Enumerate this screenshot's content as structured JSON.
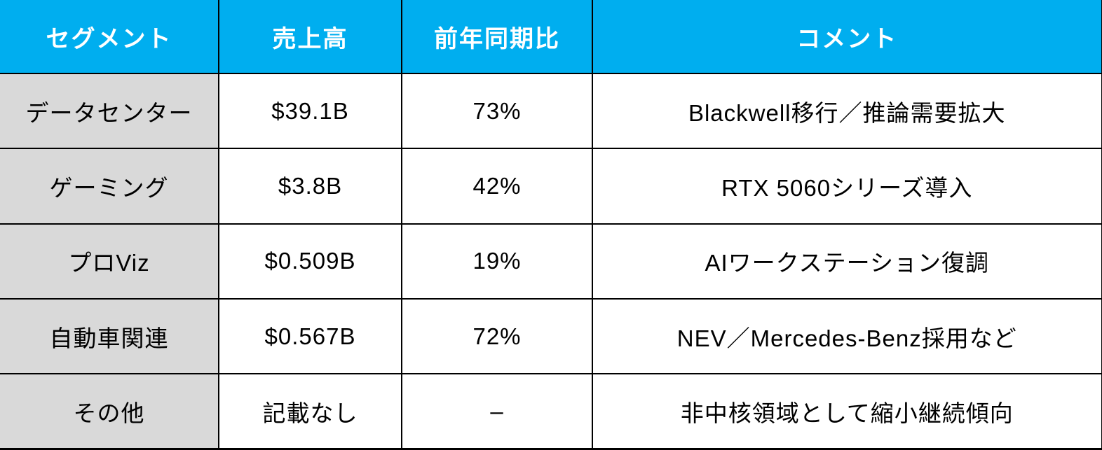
{
  "colors": {
    "header_background": "#00AEEF",
    "header_text": "#FFFFFF",
    "segment_column_background": "#D9D9D9",
    "body_background": "#FFFFFF",
    "body_text": "#000000",
    "grid_border": "#000000"
  },
  "table": {
    "headers": {
      "segment": "セグメント",
      "revenue": "売上高",
      "yoy": "前年同期比",
      "comment": "コメント"
    },
    "rows": [
      {
        "segment": "データセンター",
        "revenue": "$39.1B",
        "yoy": "73%",
        "comment": "Blackwell移行／推論需要拡大"
      },
      {
        "segment": "ゲーミング",
        "revenue": "$3.8B",
        "yoy": "42%",
        "comment": "RTX 5060シリーズ導入"
      },
      {
        "segment": "プロViz",
        "revenue": "$0.509B",
        "yoy": "19%",
        "comment": "AIワークステーション復調"
      },
      {
        "segment": "自動車関連",
        "revenue": "$0.567B",
        "yoy": "72%",
        "comment": "NEV／Mercedes-Benz採用など"
      },
      {
        "segment": "その他",
        "revenue": "記載なし",
        "yoy": "–",
        "comment": "非中核領域として縮小継続傾向"
      }
    ]
  },
  "chart_data": {
    "type": "table",
    "columns": [
      "セグメント",
      "売上高",
      "前年同期比",
      "コメント"
    ],
    "rows": [
      [
        "データセンター",
        "$39.1B",
        "73%",
        "Blackwell移行／推論需要拡大"
      ],
      [
        "ゲーミング",
        "$3.8B",
        "42%",
        "RTX 5060シリーズ導入"
      ],
      [
        "プロViz",
        "$0.509B",
        "19%",
        "AIワークステーション復調"
      ],
      [
        "自動車関連",
        "$0.567B",
        "72%",
        "NEV／Mercedes-Benz採用など"
      ],
      [
        "その他",
        "記載なし",
        "–",
        "非中核領域として縮小継続傾向"
      ]
    ],
    "notes": {
      "revenue_unit": "USD billions (B)",
      "yoy_meaning": "前年同期比 (year-over-year growth)"
    }
  }
}
